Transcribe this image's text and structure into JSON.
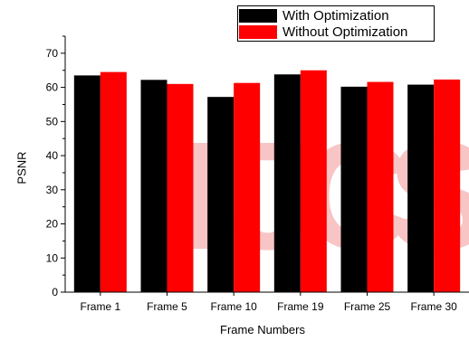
{
  "chart_data": {
    "type": "bar",
    "title": "",
    "xlabel": "Frame Numbers",
    "ylabel": "PSNR",
    "ylim": [
      0,
      75
    ],
    "yticks": [
      0,
      10,
      20,
      30,
      40,
      50,
      60,
      70
    ],
    "categories": [
      "Frame 1",
      "Frame 5",
      "Frame 10",
      "Frame 19",
      "Frame 25",
      "Frame 30"
    ],
    "series": [
      {
        "name": "With Optimization",
        "color": "#000000",
        "values": [
          63.5,
          62.2,
          57.2,
          63.8,
          60.2,
          60.8
        ]
      },
      {
        "name": "Without Optimization",
        "color": "#ff0000",
        "values": [
          64.5,
          61.0,
          61.3,
          65.0,
          61.6,
          62.3
        ]
      }
    ],
    "legend_position": "top-right",
    "grid": false
  },
  "watermark": {
    "text": "IJCS",
    "color": "#f8c4c4"
  }
}
